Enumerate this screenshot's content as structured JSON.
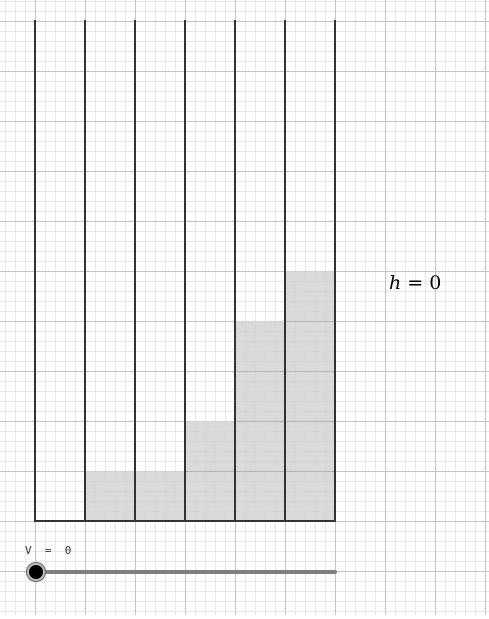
{
  "canvas": {
    "grid_minor_color": "#e8e8e8",
    "grid_major_color": "#c4c4c4",
    "wall_color": "#333333",
    "fill_color": "#d3d3d3"
  },
  "label_h": {
    "variable": "h",
    "equals": " = ",
    "value": "0"
  },
  "slider": {
    "caption": "V  =  0",
    "value_fraction": 0
  },
  "steps": {
    "unit_levels": [
      0,
      1,
      1,
      2,
      4,
      5
    ]
  }
}
